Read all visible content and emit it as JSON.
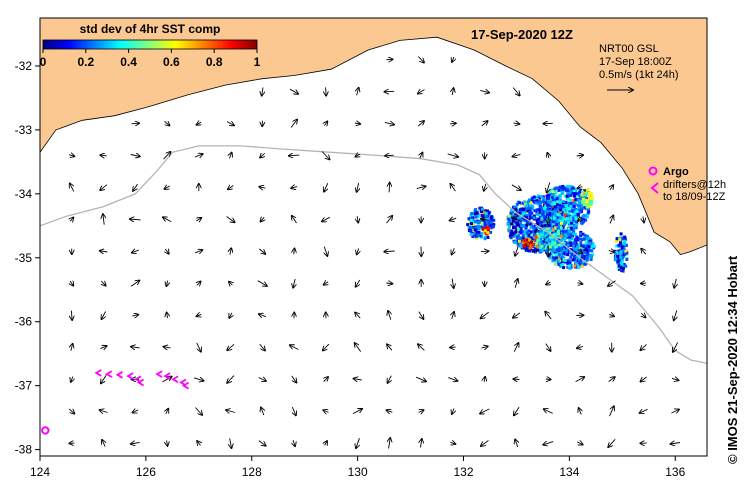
{
  "title": "17-Sep-2020 12Z",
  "colorbar": {
    "label": "std dev of 4hr SST comp",
    "ticks": [
      "0",
      "0.2",
      "0.4",
      "0.6",
      "0.8",
      "1"
    ]
  },
  "model_info": [
    "NRT00 GSL",
    "17-Sep 18:00Z",
    "0.5m/s (1kt 24h)"
  ],
  "argo_legend": {
    "title": "Argo",
    "lines": [
      "drifters@12h",
      "to 18/09-12Z"
    ]
  },
  "x_axis": {
    "ticks": [
      "124",
      "126",
      "128",
      "130",
      "132",
      "134",
      "136"
    ],
    "values": [
      124,
      126,
      128,
      130,
      132,
      134,
      136
    ],
    "range": [
      124,
      136.6
    ]
  },
  "y_axis": {
    "ticks": [
      "-32",
      "-33",
      "-34",
      "-35",
      "-36",
      "-37",
      "-38"
    ],
    "values": [
      -32,
      -33,
      -34,
      -35,
      -36,
      -37,
      -38
    ],
    "range": [
      -38.1,
      -31.25
    ]
  },
  "credit": "© IMOS 21-Sep-2020 12:34 Hobart",
  "colors": {
    "land": "#fbc891",
    "ocean": "#ffffff",
    "bathymetry": "#b4b4b4",
    "drifter": "#ff00ff",
    "vector": "#000000"
  },
  "coastline": [
    [
      124,
      -33.35
    ],
    [
      124.3,
      -33.0
    ],
    [
      124.8,
      -32.85
    ],
    [
      125.4,
      -32.78
    ],
    [
      126,
      -32.65
    ],
    [
      126.8,
      -32.45
    ],
    [
      127.5,
      -32.3
    ],
    [
      128.2,
      -32.2
    ],
    [
      128.8,
      -32.15
    ],
    [
      129.5,
      -32.05
    ],
    [
      130.2,
      -31.75
    ],
    [
      130.8,
      -31.6
    ],
    [
      131.5,
      -31.55
    ],
    [
      132.2,
      -31.75
    ],
    [
      132.8,
      -32.0
    ],
    [
      133.3,
      -32.2
    ],
    [
      133.8,
      -32.55
    ],
    [
      134.2,
      -32.95
    ],
    [
      134.6,
      -33.2
    ],
    [
      135.0,
      -33.6
    ],
    [
      135.3,
      -34.0
    ],
    [
      135.6,
      -34.6
    ],
    [
      135.9,
      -34.75
    ],
    [
      136.1,
      -34.95
    ],
    [
      136.3,
      -34.9
    ],
    [
      136.6,
      -34.8
    ]
  ],
  "bathymetry_line": [
    [
      124,
      -34.5
    ],
    [
      124.5,
      -34.35
    ],
    [
      125.2,
      -34.2
    ],
    [
      125.8,
      -34.0
    ],
    [
      126.2,
      -33.65
    ],
    [
      126.5,
      -33.35
    ],
    [
      127,
      -33.25
    ],
    [
      127.8,
      -33.25
    ],
    [
      128.6,
      -33.3
    ],
    [
      129.5,
      -33.35
    ],
    [
      130.4,
      -33.4
    ],
    [
      131.2,
      -33.45
    ],
    [
      131.9,
      -33.55
    ],
    [
      132.3,
      -33.7
    ],
    [
      132.6,
      -34.0
    ],
    [
      133.0,
      -34.3
    ],
    [
      133.6,
      -34.6
    ],
    [
      134.2,
      -35.0
    ],
    [
      134.7,
      -35.3
    ],
    [
      135.2,
      -35.6
    ],
    [
      135.7,
      -36.1
    ],
    [
      136.0,
      -36.45
    ],
    [
      136.3,
      -36.6
    ],
    [
      136.6,
      -36.65
    ]
  ],
  "argo_floats": [
    [
      124.1,
      -37.7
    ]
  ],
  "drifter_tracks": [
    [
      [
        125.1,
        -36.8
      ],
      [
        125.3,
        -36.82
      ],
      [
        125.5,
        -36.83
      ],
      [
        125.7,
        -36.85
      ],
      [
        125.85,
        -36.9
      ],
      [
        125.9,
        -36.95
      ]
    ],
    [
      [
        126.25,
        -36.82
      ],
      [
        126.4,
        -36.85
      ],
      [
        126.55,
        -36.9
      ],
      [
        126.7,
        -36.95
      ],
      [
        126.75,
        -37.0
      ]
    ]
  ],
  "sst_patches": [
    {
      "lon": 133.35,
      "lat": -34.45,
      "rlon": 0.55,
      "rlat": 0.45,
      "v": 0.18
    },
    {
      "lon": 133.9,
      "lat": -34.2,
      "rlon": 0.45,
      "rlat": 0.35,
      "v": 0.25
    },
    {
      "lon": 134.0,
      "lat": -34.85,
      "rlon": 0.45,
      "rlat": 0.3,
      "v": 0.22
    },
    {
      "lon": 134.3,
      "lat": -34.05,
      "rlon": 0.12,
      "rlat": 0.15,
      "v": 0.55
    },
    {
      "lon": 133.6,
      "lat": -34.7,
      "rlon": 0.3,
      "rlat": 0.2,
      "v": 0.35
    },
    {
      "lon": 132.3,
      "lat": -34.45,
      "rlon": 0.25,
      "rlat": 0.25,
      "v": 0.2
    },
    {
      "lon": 134.95,
      "lat": -34.9,
      "rlon": 0.12,
      "rlat": 0.3,
      "v": 0.2
    },
    {
      "lon": 133.2,
      "lat": -34.75,
      "rlon": 0.1,
      "rlat": 0.08,
      "v": 0.85
    },
    {
      "lon": 132.4,
      "lat": -34.55,
      "rlon": 0.08,
      "rlat": 0.06,
      "v": 0.75
    }
  ]
}
